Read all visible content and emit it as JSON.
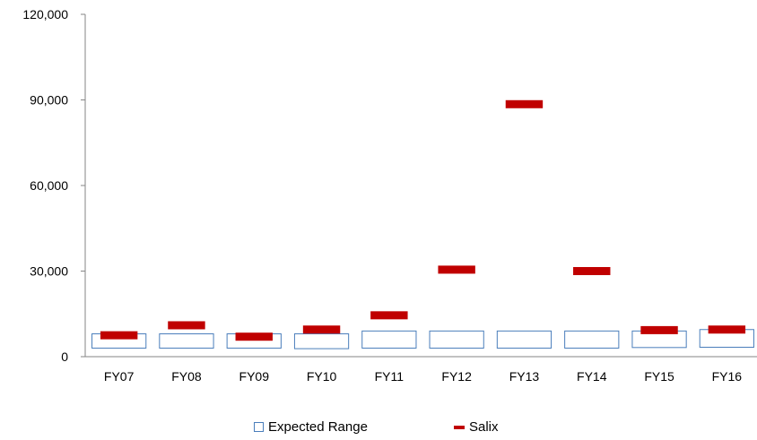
{
  "chart_data": {
    "type": "bar",
    "categories": [
      "FY07",
      "FY08",
      "FY09",
      "FY10",
      "FY11",
      "FY12",
      "FY13",
      "FY14",
      "FY15",
      "FY16"
    ],
    "series": [
      {
        "name": "Expected Range",
        "kind": "range",
        "low": [
          3000,
          3000,
          3000,
          2800,
          3000,
          3000,
          3000,
          3000,
          3200,
          3300
        ],
        "high": [
          8000,
          8000,
          8000,
          8000,
          9000,
          9000,
          9000,
          9000,
          9000,
          9500
        ]
      },
      {
        "name": "Salix",
        "kind": "marker",
        "values": [
          7500,
          11000,
          7000,
          9500,
          14500,
          30500,
          88500,
          30000,
          9300,
          9500
        ]
      }
    ],
    "yticks": [
      "0",
      "30,000",
      "60,000",
      "90,000",
      "120,000"
    ],
    "ylim": [
      0,
      120000
    ],
    "xlabel": "",
    "ylabel": "",
    "grid": false,
    "legend_position": "bottom",
    "colors": {
      "range_border": "#4a7ebb",
      "marker": "#c00000",
      "axis": "#868686"
    }
  },
  "legend": {
    "range_label": "Expected Range",
    "marker_label": "Salix"
  }
}
